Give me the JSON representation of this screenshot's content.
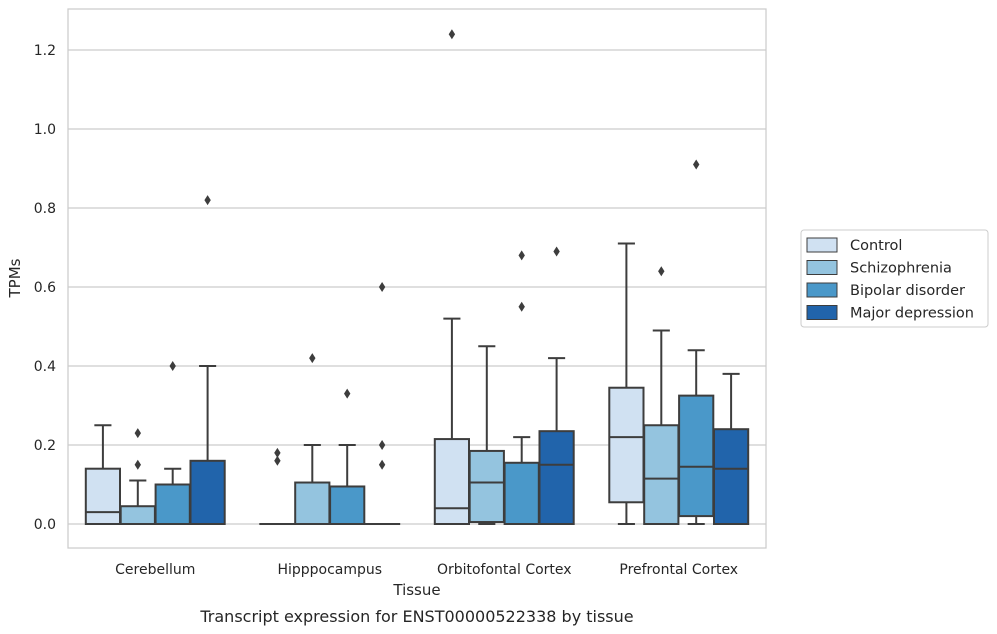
{
  "chart_data": {
    "type": "box",
    "title": "",
    "caption": "Transcript expression for ENST00000522338 by tissue",
    "xlabel": "Tissue",
    "ylabel": "TPMs",
    "ylim": [
      -0.06,
      1.3
    ],
    "yticks": [
      0.0,
      0.2,
      0.4,
      0.6,
      0.8,
      1.0,
      1.2
    ],
    "ytick_labels": [
      "0.0",
      "0.2",
      "0.4",
      "0.6",
      "0.8",
      "1.0",
      "1.2"
    ],
    "grid": "horizontal",
    "legend_position": "right",
    "categories": [
      "Cerebellum",
      "Hipppocampus",
      "Orbitofontal Cortex",
      "Prefrontal Cortex"
    ],
    "series": [
      {
        "name": "Control",
        "color": "#d0e1f2",
        "boxes": [
          {
            "q1": 0.0,
            "median": 0.03,
            "q3": 0.14,
            "whisker_low": 0.0,
            "whisker_high": 0.25,
            "outliers": []
          },
          {
            "q1": 0.0,
            "median": 0.0,
            "q3": 0.0,
            "whisker_low": 0.0,
            "whisker_high": 0.0,
            "outliers": [
              0.16,
              0.18
            ]
          },
          {
            "q1": 0.0,
            "median": 0.04,
            "q3": 0.215,
            "whisker_low": 0.0,
            "whisker_high": 0.52,
            "outliers": [
              1.24
            ]
          },
          {
            "q1": 0.055,
            "median": 0.22,
            "q3": 0.345,
            "whisker_low": 0.0,
            "whisker_high": 0.71,
            "outliers": []
          }
        ]
      },
      {
        "name": "Schizophrenia",
        "color": "#94c4df",
        "boxes": [
          {
            "q1": 0.0,
            "median": 0.0,
            "q3": 0.045,
            "whisker_low": 0.0,
            "whisker_high": 0.11,
            "outliers": [
              0.15,
              0.23
            ]
          },
          {
            "q1": 0.0,
            "median": 0.0,
            "q3": 0.105,
            "whisker_low": 0.0,
            "whisker_high": 0.2,
            "outliers": [
              0.42
            ]
          },
          {
            "q1": 0.005,
            "median": 0.105,
            "q3": 0.185,
            "whisker_low": 0.0,
            "whisker_high": 0.45,
            "outliers": []
          },
          {
            "q1": 0.0,
            "median": 0.115,
            "q3": 0.25,
            "whisker_low": 0.0,
            "whisker_high": 0.49,
            "outliers": [
              0.64
            ]
          }
        ]
      },
      {
        "name": "Bipolar disorder",
        "color": "#4a98c9",
        "boxes": [
          {
            "q1": 0.0,
            "median": 0.0,
            "q3": 0.1,
            "whisker_low": 0.0,
            "whisker_high": 0.14,
            "outliers": [
              0.4
            ]
          },
          {
            "q1": 0.0,
            "median": 0.0,
            "q3": 0.095,
            "whisker_low": 0.0,
            "whisker_high": 0.2,
            "outliers": [
              0.33
            ]
          },
          {
            "q1": 0.0,
            "median": 0.0,
            "q3": 0.155,
            "whisker_low": 0.0,
            "whisker_high": 0.22,
            "outliers": [
              0.55,
              0.68
            ]
          },
          {
            "q1": 0.02,
            "median": 0.145,
            "q3": 0.325,
            "whisker_low": 0.0,
            "whisker_high": 0.44,
            "outliers": [
              0.91
            ]
          }
        ]
      },
      {
        "name": "Major depression",
        "color": "#2164ab",
        "boxes": [
          {
            "q1": 0.0,
            "median": 0.0,
            "q3": 0.16,
            "whisker_low": 0.0,
            "whisker_high": 0.4,
            "outliers": [
              0.82
            ]
          },
          {
            "q1": 0.0,
            "median": 0.0,
            "q3": 0.0,
            "whisker_low": 0.0,
            "whisker_high": 0.0,
            "outliers": [
              0.15,
              0.2,
              0.6
            ]
          },
          {
            "q1": 0.0,
            "median": 0.15,
            "q3": 0.235,
            "whisker_low": 0.0,
            "whisker_high": 0.42,
            "outliers": [
              0.69
            ]
          },
          {
            "q1": 0.0,
            "median": 0.14,
            "q3": 0.24,
            "whisker_low": 0.0,
            "whisker_high": 0.38,
            "outliers": []
          }
        ]
      }
    ]
  },
  "colors": {
    "grid": "#cccccc",
    "axes_frame": "#cccccc",
    "box_edge": "#3d3d3d",
    "text": "#262626"
  }
}
